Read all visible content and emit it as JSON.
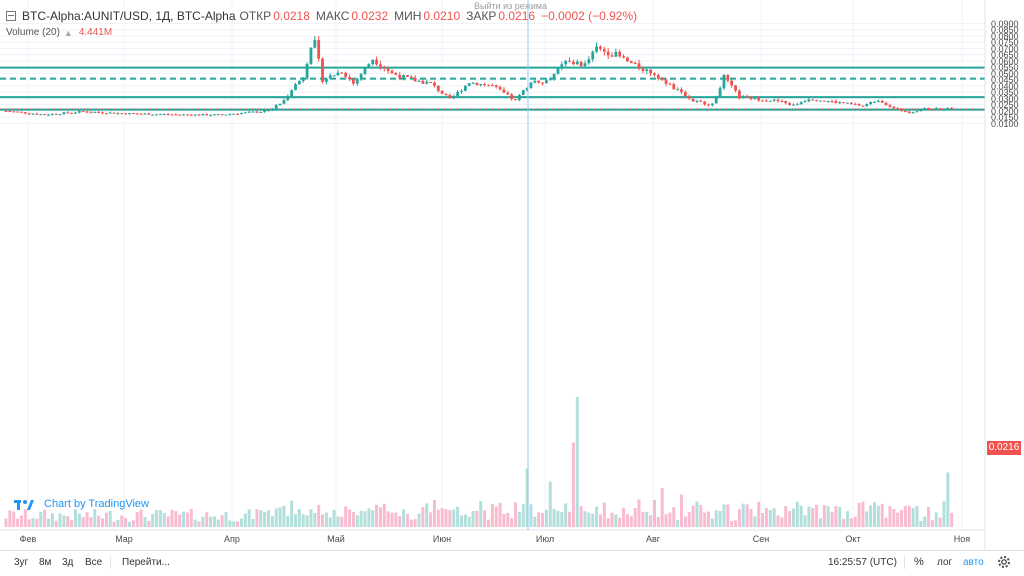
{
  "header": {
    "symbol": "BTC-Alpha:AUNIT/USD, 1Д, BTC-Alpha",
    "open_label": "ОТКР",
    "open_value": "0.0218",
    "high_label": "МАКС",
    "high_value": "0.0232",
    "low_label": "МИН",
    "low_value": "0.0210",
    "close_label": "ЗАКР",
    "close_value": "0.0216",
    "change": "−0.0002 (−0.92%)",
    "exit_replay": "Выйти из режима",
    "volume_label": "Volume (20)",
    "volume_arrow": "▲",
    "volume_value": "4.441M"
  },
  "watermark": "Chart by TradingView",
  "price_tag": "0.0216",
  "bottom_bar": {
    "timeframes": [
      "3уг",
      "8м",
      "3д",
      "Все"
    ],
    "goto": "Перейти...",
    "clock": "16:25:57 (UTC)",
    "percent": "%",
    "log": "лог",
    "auto": "авто"
  },
  "colors": {
    "up": "#26a69a",
    "down": "#ef5350",
    "vol_up": "#b2dfdb",
    "vol_down": "#f8bbd0",
    "hline": "#26a69a",
    "grid": "#f0f3fa"
  },
  "chart_data": {
    "type": "candlestick",
    "price_axis": [
      "0.0900",
      "0.0850",
      "0.0800",
      "0.0750",
      "0.0700",
      "0.0650",
      "0.0600",
      "0.0550",
      "0.0500",
      "0.0450",
      "0.0400",
      "0.0350",
      "0.0300",
      "0.0250",
      "0.0200",
      "0.0150",
      "0.0100"
    ],
    "time_axis": [
      "Фев",
      "Мар",
      "Апр",
      "Май",
      "Июн",
      "Июл",
      "Авг",
      "Сен",
      "Окт",
      "Ноя"
    ],
    "horizontal_lines": [
      {
        "price": 0.0547,
        "style": "solid"
      },
      {
        "price": 0.0459,
        "style": "dashed"
      },
      {
        "price": 0.0311,
        "style": "solid"
      },
      {
        "price": 0.021,
        "style": "solid"
      }
    ],
    "last_price": 0.0216,
    "keypoints": [
      {
        "d": 0,
        "p": 0.02
      },
      {
        "d": 10,
        "p": 0.017
      },
      {
        "d": 20,
        "p": 0.0195
      },
      {
        "d": 30,
        "p": 0.018
      },
      {
        "d": 45,
        "p": 0.017
      },
      {
        "d": 55,
        "p": 0.0168
      },
      {
        "d": 66,
        "p": 0.0195
      },
      {
        "d": 69,
        "p": 0.022
      },
      {
        "d": 72,
        "p": 0.028
      },
      {
        "d": 74,
        "p": 0.038
      },
      {
        "d": 77,
        "p": 0.047
      },
      {
        "d": 79,
        "p": 0.073
      },
      {
        "d": 80,
        "p": 0.074
      },
      {
        "d": 82,
        "p": 0.045
      },
      {
        "d": 87,
        "p": 0.052
      },
      {
        "d": 90,
        "p": 0.042
      },
      {
        "d": 95,
        "p": 0.062
      },
      {
        "d": 100,
        "p": 0.05
      },
      {
        "d": 105,
        "p": 0.045
      },
      {
        "d": 110,
        "p": 0.042
      },
      {
        "d": 115,
        "p": 0.029
      },
      {
        "d": 120,
        "p": 0.043
      },
      {
        "d": 126,
        "p": 0.04
      },
      {
        "d": 132,
        "p": 0.028
      },
      {
        "d": 136,
        "p": 0.044
      },
      {
        "d": 140,
        "p": 0.044
      },
      {
        "d": 145,
        "p": 0.059
      },
      {
        "d": 150,
        "p": 0.057
      },
      {
        "d": 153,
        "p": 0.07
      },
      {
        "d": 158,
        "p": 0.065
      },
      {
        "d": 163,
        "p": 0.056
      },
      {
        "d": 168,
        "p": 0.05
      },
      {
        "d": 173,
        "p": 0.038
      },
      {
        "d": 178,
        "p": 0.028
      },
      {
        "d": 183,
        "p": 0.025
      },
      {
        "d": 186,
        "p": 0.047
      },
      {
        "d": 190,
        "p": 0.031
      },
      {
        "d": 200,
        "p": 0.028
      },
      {
        "d": 204,
        "p": 0.0245
      },
      {
        "d": 208,
        "p": 0.03
      },
      {
        "d": 215,
        "p": 0.027
      },
      {
        "d": 222,
        "p": 0.024
      },
      {
        "d": 226,
        "p": 0.029
      },
      {
        "d": 230,
        "p": 0.022
      },
      {
        "d": 234,
        "p": 0.019
      },
      {
        "d": 238,
        "p": 0.0215
      },
      {
        "d": 245,
        "p": 0.0216
      }
    ],
    "volume_spikes": [
      {
        "d": 135,
        "v": 0.45
      },
      {
        "d": 141,
        "v": 0.35
      },
      {
        "d": 147,
        "v": 0.65
      },
      {
        "d": 148,
        "v": 1.0
      },
      {
        "d": 170,
        "v": 0.3
      },
      {
        "d": 175,
        "v": 0.25
      },
      {
        "d": 244,
        "v": 0.42
      }
    ]
  }
}
